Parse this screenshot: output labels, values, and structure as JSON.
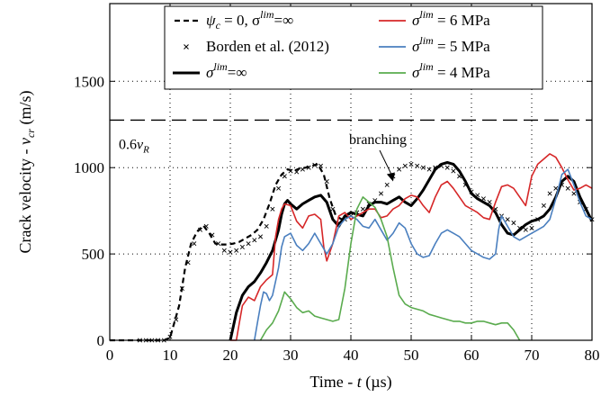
{
  "chart_data": {
    "type": "line",
    "xlabel": "Time - t  (µs)",
    "ylabel": "Crack velocity - v_cr (m/s)",
    "xlim": [
      0,
      80
    ],
    "ylim": [
      0,
      1950
    ],
    "xticks": [
      0,
      10,
      20,
      30,
      40,
      50,
      60,
      70,
      80
    ],
    "yticks": [
      0,
      500,
      1000,
      1500
    ],
    "grid": "dotted",
    "legend_position": "top",
    "reference_line": {
      "label": "0.6v_R",
      "y": 1275,
      "style": "dashed"
    },
    "annotations": [
      {
        "text": "branching",
        "x": 47,
        "y": 920
      }
    ],
    "series": [
      {
        "name": "ψ_c = 0, σ^lim = ∞",
        "style": "dashed",
        "color": "#000000",
        "x": [
          0,
          5,
          9,
          10,
          11.5,
          12.5,
          13.5,
          14.5,
          15.5,
          16.5,
          17.5,
          18.5,
          19.5,
          20.5,
          21.5,
          22.5,
          23.5,
          24.5,
          25.5,
          26.5,
          27.5,
          28.5,
          29.5,
          30.5,
          31.5,
          32.5,
          33.5,
          34.5,
          35.5,
          36.5,
          37.5,
          38.5,
          39.5
        ],
        "y": [
          0,
          0,
          0,
          15,
          200,
          420,
          560,
          630,
          665,
          620,
          560,
          555,
          555,
          560,
          570,
          590,
          610,
          640,
          700,
          790,
          900,
          960,
          990,
          980,
          995,
          1000,
          1010,
          1020,
          960,
          820,
          720,
          700,
          720
        ]
      },
      {
        "name": "Borden et al. (2012)",
        "style": "marker-x",
        "color": "#000000",
        "x": [
          5,
          6,
          7,
          8,
          9,
          10,
          11,
          12,
          13,
          14,
          15,
          16,
          17,
          18,
          19,
          20,
          21,
          22,
          23,
          24,
          25,
          26,
          27,
          28,
          29,
          30,
          31,
          32,
          33,
          34,
          35,
          36,
          37,
          38,
          39,
          40,
          41,
          42,
          43,
          44,
          45,
          46,
          47,
          48,
          49,
          50,
          51,
          52,
          53,
          54,
          55,
          56,
          57,
          58,
          59,
          60,
          61,
          62,
          63,
          64,
          65,
          66,
          67,
          68,
          69,
          70,
          71,
          72,
          73,
          74,
          75,
          76,
          77,
          78,
          79,
          80
        ],
        "y": [
          0,
          0,
          0,
          0,
          0,
          20,
          120,
          300,
          450,
          560,
          640,
          660,
          610,
          560,
          520,
          510,
          520,
          540,
          560,
          580,
          600,
          660,
          760,
          880,
          950,
          980,
          975,
          990,
          1000,
          1015,
          1010,
          920,
          760,
          680,
          700,
          720,
          740,
          760,
          790,
          810,
          850,
          900,
          950,
          990,
          1010,
          1020,
          1010,
          1000,
          990,
          1000,
          1010,
          1000,
          980,
          950,
          900,
          860,
          840,
          820,
          800,
          760,
          720,
          700,
          680,
          650,
          640,
          650,
          700,
          780,
          850,
          880,
          900,
          880,
          850,
          800,
          760,
          700
        ]
      },
      {
        "name": "σ^lim = ∞",
        "style": "solid-thick",
        "color": "#000000",
        "x": [
          20,
          21,
          22,
          23,
          24,
          25,
          26,
          27,
          28,
          28.5,
          29,
          29.5,
          30,
          31,
          32,
          33,
          34,
          35,
          36,
          37,
          38,
          39,
          40,
          41,
          42,
          43,
          44,
          45,
          46,
          47,
          48,
          49,
          50,
          51,
          52,
          53,
          54,
          55,
          56,
          57,
          58,
          59,
          60,
          61,
          62,
          63,
          64,
          65,
          66,
          67,
          68,
          69,
          70,
          71,
          72,
          73,
          74,
          75,
          76,
          77,
          78,
          79,
          80
        ],
        "y": [
          0,
          160,
          260,
          310,
          340,
          390,
          450,
          520,
          640,
          730,
          790,
          810,
          790,
          760,
          790,
          810,
          830,
          840,
          800,
          700,
          660,
          720,
          740,
          730,
          720,
          780,
          800,
          800,
          790,
          810,
          830,
          800,
          780,
          820,
          870,
          930,
          990,
          1020,
          1030,
          1020,
          980,
          920,
          850,
          820,
          800,
          780,
          740,
          670,
          620,
          610,
          640,
          670,
          690,
          700,
          720,
          760,
          830,
          920,
          950,
          920,
          830,
          760,
          690
        ]
      },
      {
        "name": "σ^lim = 6 MPa",
        "style": "solid",
        "color": "#d62728",
        "x": [
          20,
          21,
          21.5,
          22,
          23,
          24,
          25,
          26,
          27,
          27.5,
          28,
          28.5,
          29,
          30,
          31,
          32,
          33,
          34,
          35,
          35.5,
          36,
          37,
          38,
          39,
          40,
          41,
          42,
          43,
          44,
          45,
          46,
          47,
          48,
          49,
          50,
          51,
          52,
          53,
          54,
          55,
          56,
          57,
          58,
          59,
          60,
          61,
          62,
          63,
          64,
          65,
          66,
          67,
          68,
          69,
          70,
          71,
          72,
          73,
          74,
          75,
          76,
          77,
          78,
          79,
          80
        ],
        "y": [
          0,
          0,
          100,
          200,
          250,
          230,
          310,
          350,
          380,
          600,
          700,
          760,
          790,
          780,
          690,
          650,
          720,
          730,
          700,
          540,
          460,
          560,
          720,
          740,
          700,
          720,
          740,
          760,
          760,
          710,
          720,
          760,
          780,
          820,
          840,
          830,
          780,
          740,
          830,
          900,
          920,
          880,
          830,
          780,
          760,
          740,
          710,
          700,
          800,
          890,
          900,
          880,
          830,
          780,
          950,
          1020,
          1050,
          1080,
          1060,
          1000,
          930,
          870,
          880,
          900,
          880
        ]
      },
      {
        "name": "σ^lim = 5 MPa",
        "style": "solid",
        "color": "#4a7fbf",
        "x": [
          24,
          24.5,
          25,
          25.5,
          26,
          26.5,
          27,
          28,
          28.5,
          29,
          30,
          31,
          32,
          33,
          34,
          35,
          36,
          37,
          38,
          39,
          40,
          41,
          42,
          43,
          44,
          45,
          46,
          47,
          48,
          49,
          50,
          51,
          52,
          53,
          54,
          55,
          56,
          57,
          58,
          59,
          60,
          61,
          62,
          63,
          64,
          64.5,
          65,
          66,
          67,
          68,
          69,
          70,
          71,
          72,
          73,
          74,
          75,
          76,
          77,
          78,
          79,
          80
        ],
        "y": [
          0,
          100,
          200,
          280,
          270,
          230,
          260,
          420,
          540,
          600,
          620,
          550,
          520,
          560,
          620,
          560,
          500,
          560,
          660,
          700,
          720,
          700,
          660,
          650,
          700,
          640,
          580,
          620,
          680,
          650,
          560,
          500,
          480,
          490,
          560,
          620,
          640,
          620,
          600,
          560,
          520,
          500,
          480,
          470,
          500,
          640,
          720,
          660,
          600,
          580,
          600,
          620,
          640,
          660,
          700,
          820,
          960,
          990,
          900,
          800,
          720,
          700
        ]
      },
      {
        "name": "σ^lim = 4 MPa",
        "style": "solid",
        "color": "#5aab4e",
        "x": [
          25,
          26,
          27,
          28,
          29,
          30,
          31,
          32,
          33,
          34,
          35,
          36,
          37,
          38,
          39,
          40,
          41,
          42,
          43,
          44,
          45,
          46,
          47,
          48,
          49,
          50,
          51,
          52,
          53,
          54,
          55,
          56,
          57,
          58,
          59,
          60,
          61,
          62,
          63,
          64,
          65,
          66,
          67,
          68
        ],
        "y": [
          0,
          60,
          100,
          170,
          280,
          240,
          190,
          160,
          170,
          140,
          130,
          120,
          110,
          120,
          300,
          560,
          760,
          830,
          800,
          770,
          700,
          600,
          420,
          260,
          210,
          190,
          180,
          170,
          150,
          140,
          130,
          120,
          110,
          110,
          100,
          100,
          110,
          110,
          100,
          90,
          100,
          100,
          60,
          0
        ]
      }
    ]
  },
  "legend": {
    "col1": [
      {
        "pre": "ψ",
        "sub": "c",
        "mid": " = 0, σ",
        "sup": "lim",
        "post": "=∞"
      },
      {
        "text": "Borden et al. (2012)"
      },
      {
        "pre": "σ",
        "sup": "lim",
        "post": "=∞"
      }
    ],
    "col2": [
      {
        "pre": "σ",
        "sup": "lim",
        "post": " = 6 MPa"
      },
      {
        "pre": "σ",
        "sup": "lim",
        "post": " = 5 MPa"
      },
      {
        "pre": "σ",
        "sup": "lim",
        "post": " = 4 MPa"
      }
    ]
  }
}
